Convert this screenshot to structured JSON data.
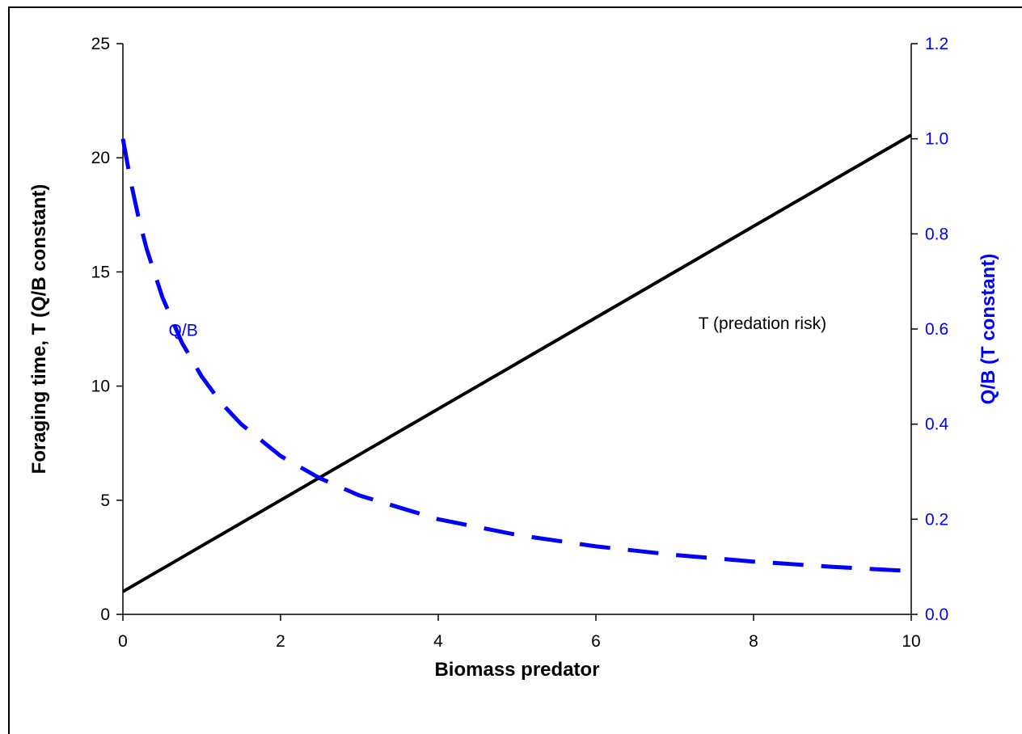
{
  "chart_data": {
    "type": "line",
    "xlabel": "Biomass predator",
    "ylabel_left": "Foraging time, T (Q/B constant)",
    "ylabel_right": "Q/B (T constant)",
    "xlim": [
      0,
      10
    ],
    "ylim_left": [
      0,
      25
    ],
    "ylim_right": [
      0,
      1.2
    ],
    "x_ticks": [
      "0",
      "2",
      "4",
      "6",
      "8",
      "10"
    ],
    "y_left_ticks": [
      "0",
      "5",
      "10",
      "15",
      "20",
      "25"
    ],
    "y_right_ticks": [
      "0.0",
      "0.2",
      "0.4",
      "0.6",
      "0.8",
      "1.0",
      "1.2"
    ],
    "grid": false,
    "colors": {
      "T": "#000000",
      "QB": "#0000ff"
    },
    "series": [
      {
        "id": "T",
        "axis": "left",
        "style": "solid",
        "x": [
          0,
          1,
          2,
          3,
          4,
          5,
          6,
          7,
          8,
          9,
          10
        ],
        "y": [
          1,
          3,
          5,
          7,
          9,
          11,
          13,
          15,
          17,
          19,
          21
        ]
      },
      {
        "id": "QB",
        "axis": "right",
        "style": "dashed",
        "x": [
          0,
          0.1,
          0.2,
          0.3,
          0.5,
          0.75,
          1,
          1.25,
          1.5,
          2,
          2.5,
          3,
          4,
          5,
          6,
          7,
          8,
          9,
          10
        ],
        "y": [
          1.0,
          0.909,
          0.833,
          0.769,
          0.667,
          0.571,
          0.5,
          0.444,
          0.4,
          0.333,
          0.286,
          0.25,
          0.2,
          0.167,
          0.143,
          0.125,
          0.111,
          0.1,
          0.091
        ]
      }
    ],
    "annotations": [
      {
        "text": "T (predation risk)",
        "x": 7.3,
        "y_left": 12.5
      },
      {
        "text": "Q/B",
        "x": 0.58,
        "y_left": 12.2
      }
    ]
  }
}
